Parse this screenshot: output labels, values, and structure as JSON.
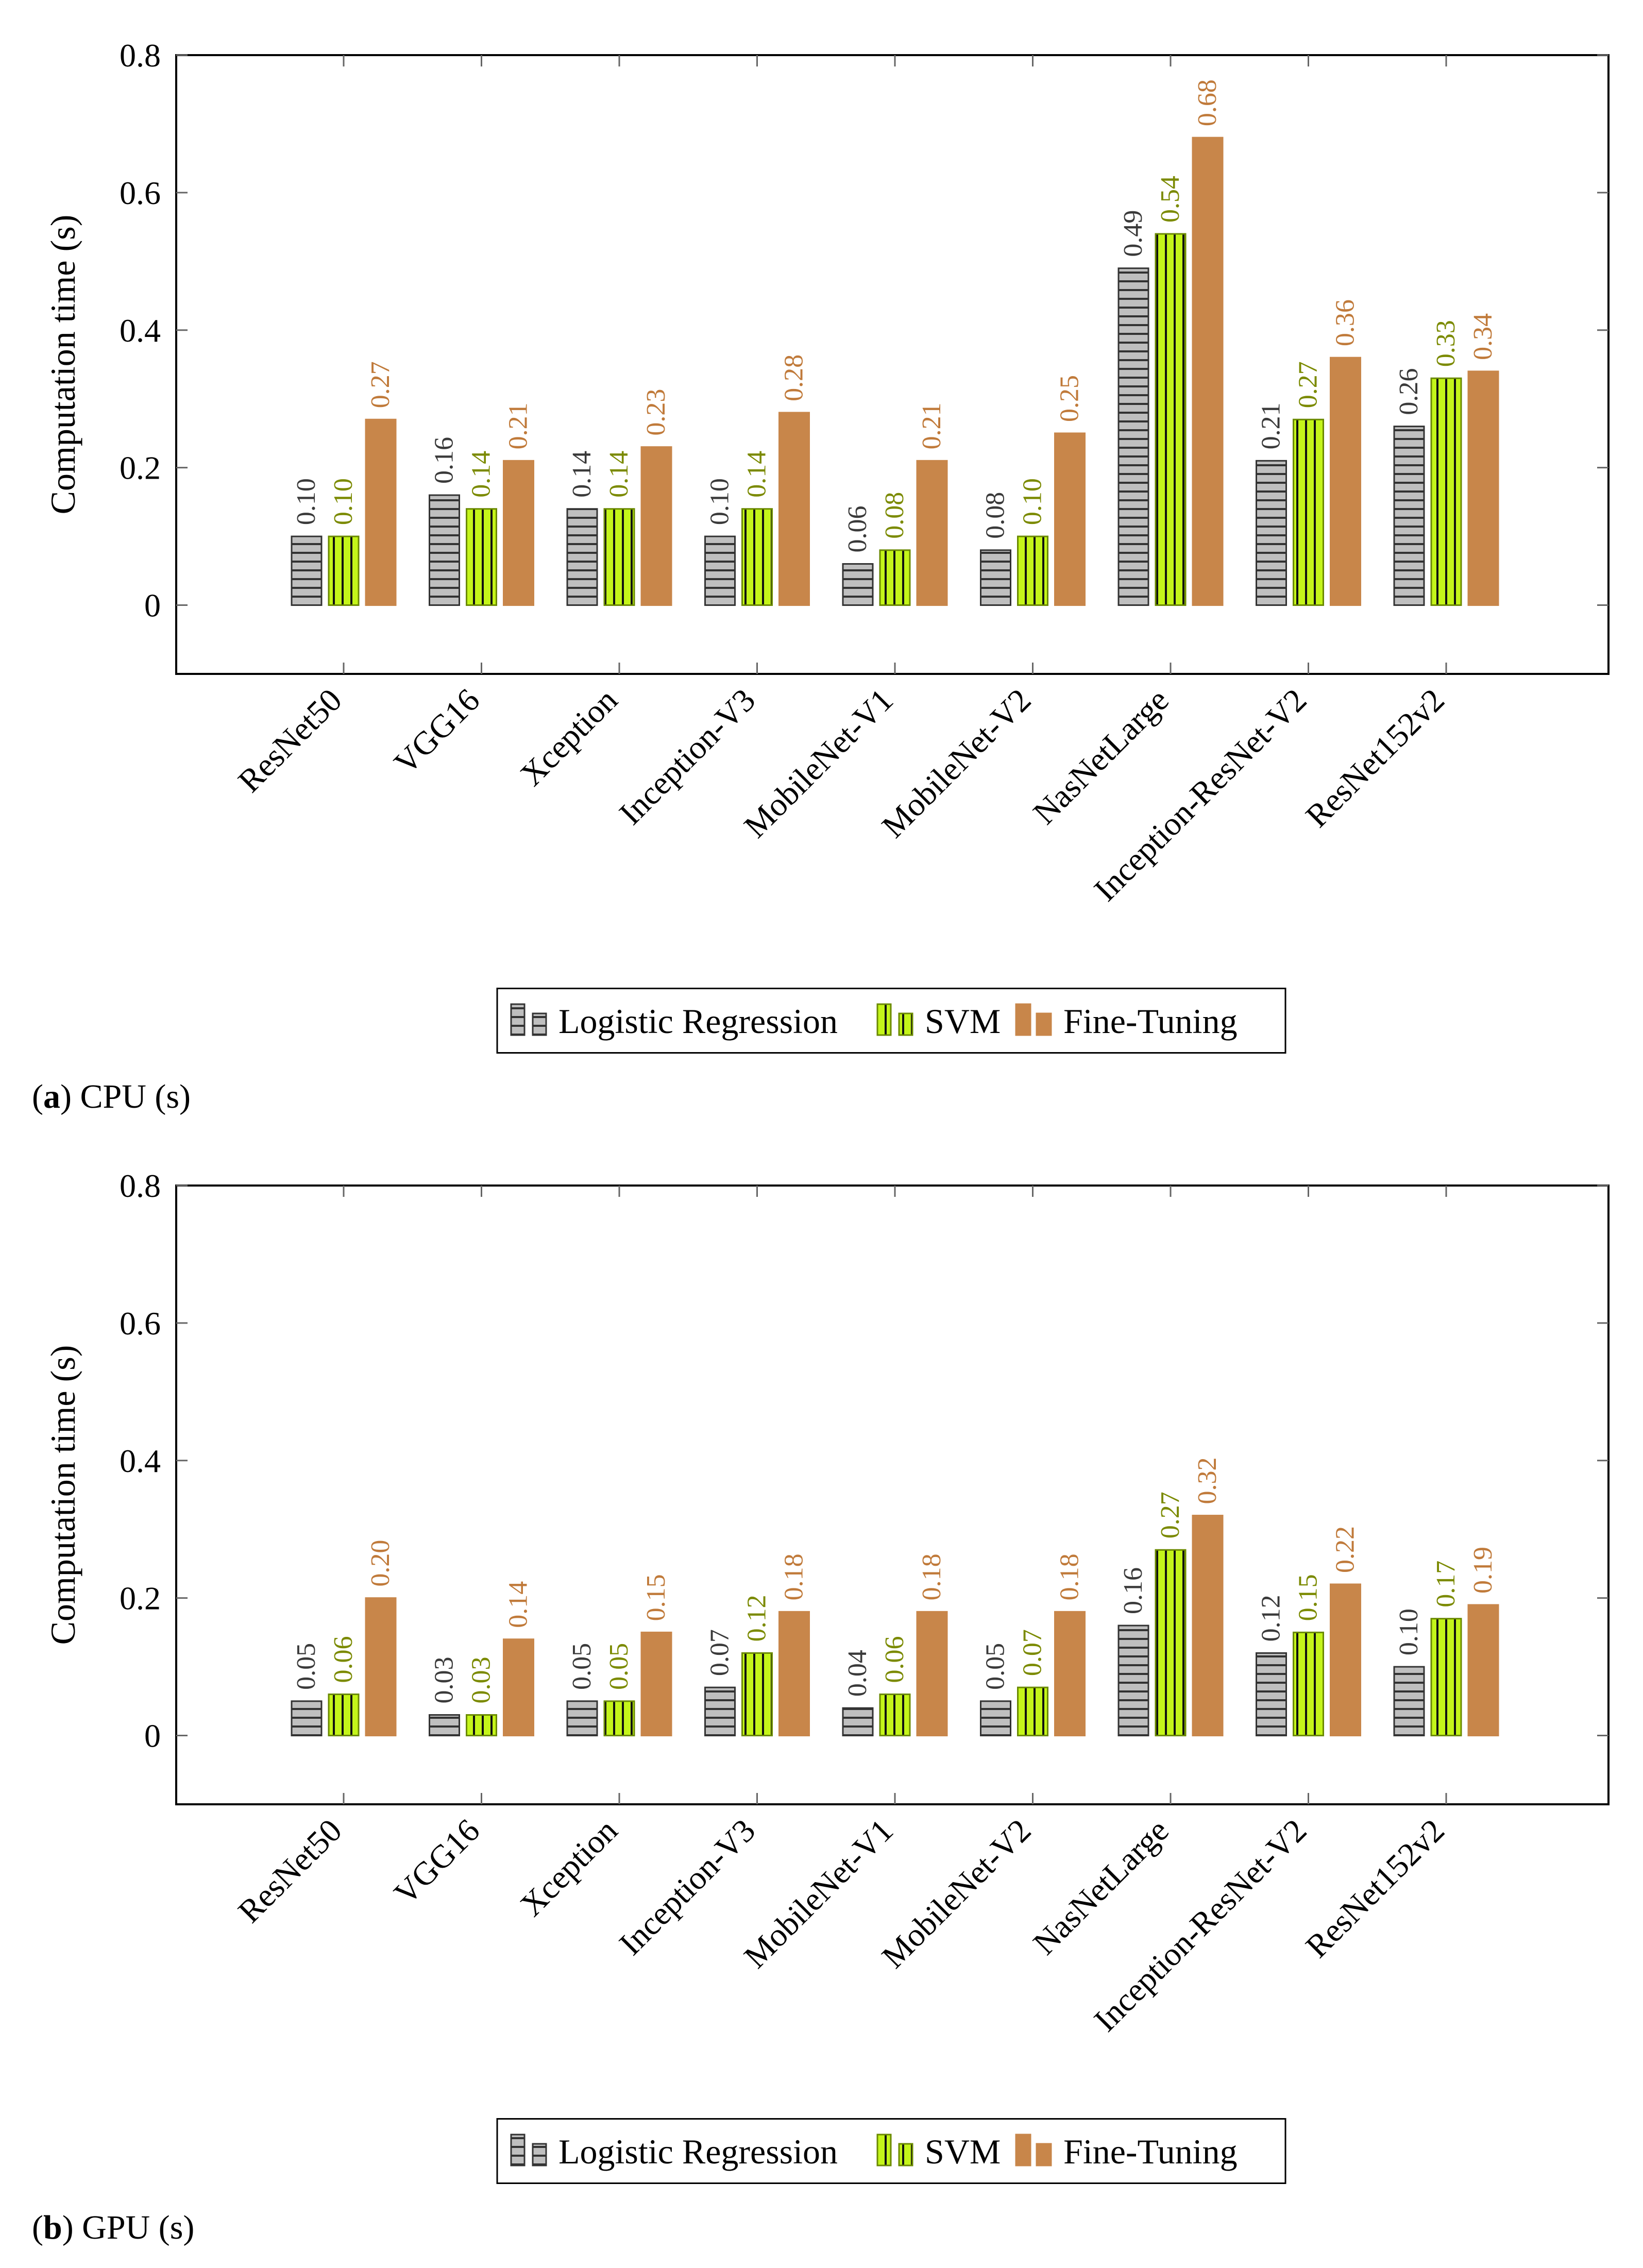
{
  "colors": {
    "logistic_fill": "#bfbfbf",
    "logistic_stripe": "#333333",
    "logistic_label": "#3a3a3a",
    "svm_fill": "#c4f51a",
    "svm_stroke": "#6b8a00",
    "svm_label": "#7b8a00",
    "finetune_fill": "#c8864a",
    "finetune_label": "#c07a3a",
    "axis": "#000000"
  },
  "chart_data": [
    {
      "id": "cpu",
      "type": "bar",
      "panel_letter": "a",
      "caption_text": ") CPU (s)",
      "ylabel": "Computation time (s)",
      "ylim": [
        -0.1,
        0.8
      ],
      "yticks": [
        "0",
        "0.2",
        "0.4",
        "0.6",
        "0.8"
      ],
      "ytick_values": [
        0,
        0.2,
        0.4,
        0.6,
        0.8
      ],
      "categories": [
        "ResNet50",
        "VGG16",
        "Xception",
        "Inception-V3",
        "MobileNet-V1",
        "MobileNet-V2",
        "NasNetLarge",
        "Inception-ResNet-V2",
        "ResNet152v2"
      ],
      "series": [
        {
          "name": "Logistic Regression",
          "values": [
            0.1,
            0.16,
            0.14,
            0.1,
            0.06,
            0.08,
            0.49,
            0.21,
            0.26
          ],
          "labels": [
            "0.10",
            "0.16",
            "0.14",
            "0.10",
            "0.06",
            "0.08",
            "0.49",
            "0.21",
            "0.26"
          ]
        },
        {
          "name": "SVM",
          "values": [
            0.1,
            0.14,
            0.14,
            0.14,
            0.08,
            0.1,
            0.54,
            0.27,
            0.33
          ],
          "labels": [
            "0.10",
            "0.14",
            "0.14",
            "0.14",
            "0.08",
            "0.10",
            "0.54",
            "0.27",
            "0.33"
          ]
        },
        {
          "name": "Fine-Tuning",
          "values": [
            0.27,
            0.21,
            0.23,
            0.28,
            0.21,
            0.25,
            0.68,
            0.36,
            0.34
          ],
          "labels": [
            "0.27",
            "0.21",
            "0.23",
            "0.28",
            "0.21",
            "0.25",
            "0.68",
            "0.36",
            "0.34"
          ]
        }
      ],
      "legend": {
        "placement": "bottom-center",
        "entries": [
          "Logistic Regression",
          "SVM",
          "Fine-Tuning"
        ]
      }
    },
    {
      "id": "gpu",
      "type": "bar",
      "panel_letter": "b",
      "caption_text": ") GPU (s)",
      "ylabel": "Computation time (s)",
      "ylim": [
        -0.1,
        0.8
      ],
      "yticks": [
        "0",
        "0.2",
        "0.4",
        "0.6",
        "0.8"
      ],
      "ytick_values": [
        0,
        0.2,
        0.4,
        0.6,
        0.8
      ],
      "categories": [
        "ResNet50",
        "VGG16",
        "Xception",
        "Inception-V3",
        "MobileNet-V1",
        "MobileNet-V2",
        "NasNetLarge",
        "Inception-ResNet-V2",
        "ResNet152v2"
      ],
      "series": [
        {
          "name": "Logistic Regression",
          "values": [
            0.05,
            0.03,
            0.05,
            0.07,
            0.04,
            0.05,
            0.16,
            0.12,
            0.1
          ],
          "labels": [
            "0.05",
            "0.03",
            "0.05",
            "0.07",
            "0.04",
            "0.05",
            "0.16",
            "0.12",
            "0.10"
          ]
        },
        {
          "name": "SVM",
          "values": [
            0.06,
            0.03,
            0.05,
            0.12,
            0.06,
            0.07,
            0.27,
            0.15,
            0.17
          ],
          "labels": [
            "0.06",
            "0.03",
            "0.05",
            "0.12",
            "0.06",
            "0.07",
            "0.27",
            "0.15",
            "0.17"
          ]
        },
        {
          "name": "Fine-Tuning",
          "values": [
            0.2,
            0.14,
            0.15,
            0.18,
            0.18,
            0.18,
            0.32,
            0.22,
            0.19
          ],
          "labels": [
            "0.20",
            "0.14",
            "0.15",
            "0.18",
            "0.18",
            "0.18",
            "0.32",
            "0.22",
            "0.19"
          ]
        }
      ],
      "legend": {
        "placement": "bottom-center",
        "entries": [
          "Logistic Regression",
          "SVM",
          "Fine-Tuning"
        ]
      }
    }
  ]
}
